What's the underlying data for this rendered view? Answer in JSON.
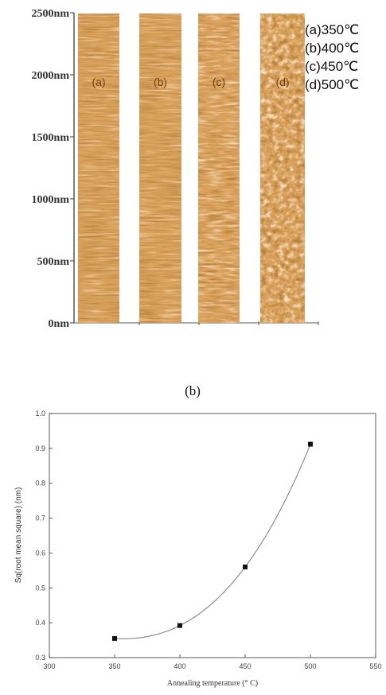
{
  "afm": {
    "y_ticks": [
      "2500nm",
      "2000nm",
      "1500nm",
      "1000nm",
      "500nm",
      "0nm"
    ],
    "panels": [
      {
        "label": "(a)",
        "legend": "(a)350℃",
        "texture": "fine",
        "seed": 11
      },
      {
        "label": "(b)",
        "legend": "(b)400℃",
        "texture": "fine",
        "seed": 23
      },
      {
        "label": "(c)",
        "legend": "(c)450℃",
        "texture": "medium",
        "seed": 37
      },
      {
        "label": "(d)",
        "legend": "(d)500℃",
        "texture": "coarse",
        "seed": 53
      }
    ],
    "colors": {
      "dark": "#7a3a0c",
      "mid": "#b8601e",
      "light": "#f2c48a"
    }
  },
  "caption": "(b)",
  "chart_data": {
    "type": "scatter",
    "title": "",
    "xlabel": "Annealing temperature (° C)",
    "ylabel": "Sq(root mean square) (nm)",
    "xlim": [
      300,
      550
    ],
    "ylim": [
      0.3,
      1.0
    ],
    "x_ticks": [
      "300",
      "350",
      "400",
      "450",
      "500",
      "550"
    ],
    "y_ticks": [
      "0.3",
      "0.4",
      "0.5",
      "0.6",
      "0.7",
      "0.8",
      "0.9",
      "1.0"
    ],
    "x": [
      350,
      400,
      450,
      500
    ],
    "y": [
      0.355,
      0.392,
      0.56,
      0.912
    ],
    "fit_line": true,
    "grid": false
  }
}
